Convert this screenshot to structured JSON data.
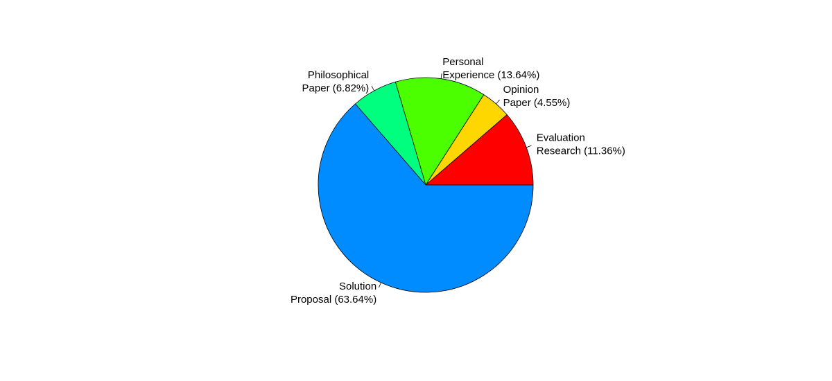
{
  "chart_data": {
    "type": "pie",
    "title": "",
    "start_angle_deg": 0,
    "direction": "counterclockwise",
    "slices": [
      {
        "label_lines": [
          "Evaluation",
          "Research (11.36%)"
        ],
        "value": 11.36,
        "color": "#ff0000"
      },
      {
        "label_lines": [
          "Opinion",
          "Paper (4.55%)"
        ],
        "value": 4.55,
        "color": "#ffd700"
      },
      {
        "label_lines": [
          "Personal",
          "Experience (13.64%)"
        ],
        "value": 13.64,
        "color": "#4cff00"
      },
      {
        "label_lines": [
          "Philosophical",
          "Paper (6.82%)"
        ],
        "value": 6.82,
        "color": "#00ff7f"
      },
      {
        "label_lines": [
          "Solution",
          "Proposal (63.64%)"
        ],
        "value": 63.64,
        "color": "#008cff"
      }
    ]
  }
}
